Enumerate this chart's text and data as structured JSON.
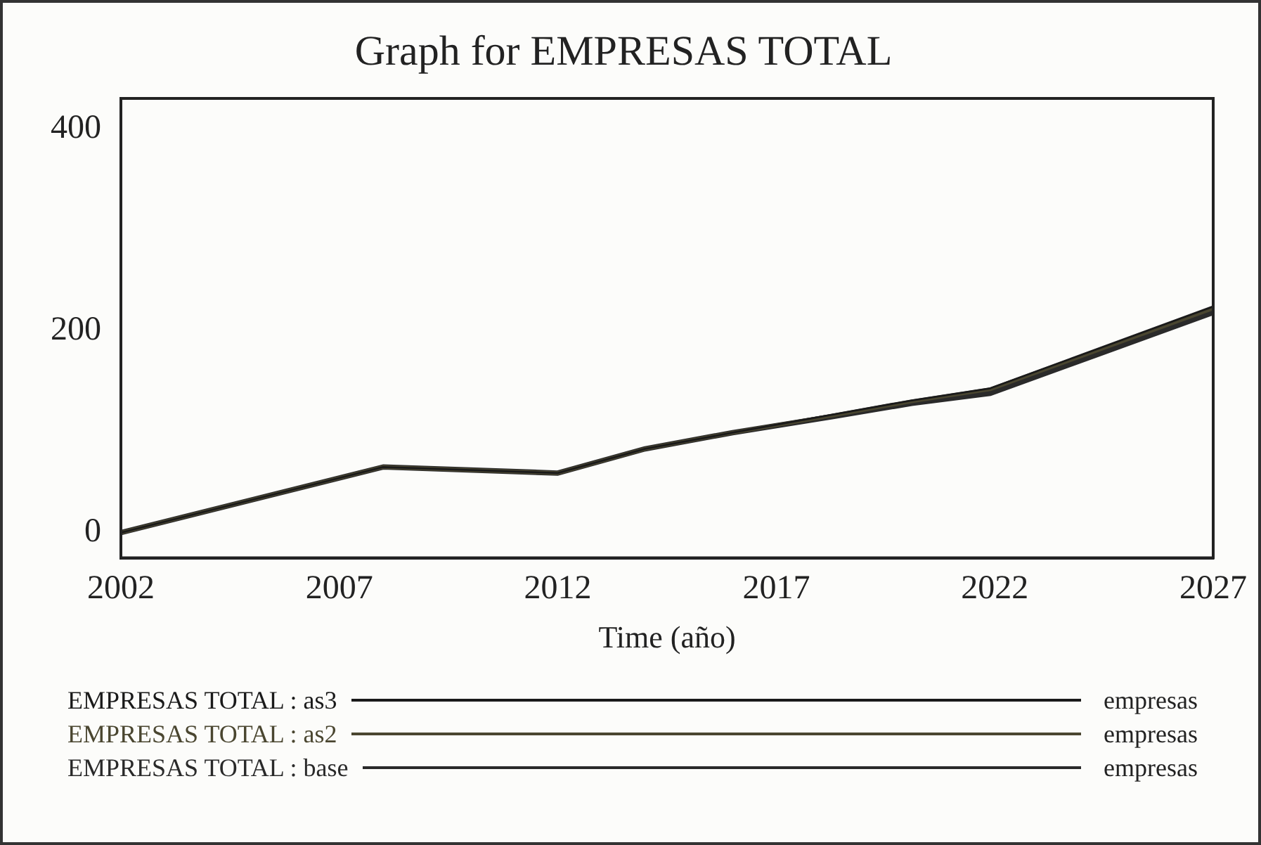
{
  "chart_data": {
    "type": "line",
    "title": "Graph for EMPRESAS TOTAL",
    "xlabel": "Time (año)",
    "x": [
      2002,
      2008,
      2012,
      2014,
      2016,
      2018.3,
      2020.1,
      2021.9,
      2027
    ],
    "xlim": [
      2002,
      2027
    ],
    "xticks": [
      2002,
      2007,
      2012,
      2017,
      2022,
      2027
    ],
    "ylim": [
      -25,
      430
    ],
    "yticks": [
      0,
      200,
      400
    ],
    "grid": false,
    "legend": "bottom",
    "marker": "none",
    "line_style": "solid",
    "series": [
      {
        "name": "EMPRESAS TOTAL : as3",
        "color": "#1a1a1a",
        "values": [
          0,
          65,
          59,
          83,
          99,
          117,
          131,
          143,
          224
        ]
      },
      {
        "name": "EMPRESAS TOTAL : as2",
        "color": "#4a4630",
        "values": [
          0,
          65,
          59,
          83,
          99,
          116,
          130,
          142,
          222
        ]
      },
      {
        "name": "EMPRESAS TOTAL : base",
        "color": "#2a2a2a",
        "values": [
          0,
          65,
          59,
          83,
          99,
          115,
          128,
          138,
          218
        ]
      }
    ],
    "annotations": [
      "empresas",
      "empresas",
      "empresas"
    ]
  }
}
